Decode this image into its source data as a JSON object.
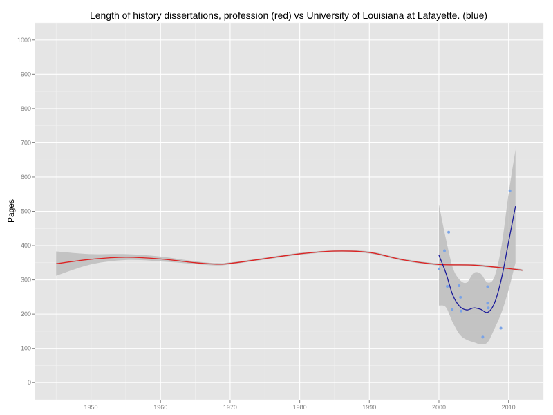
{
  "chart_data": {
    "type": "scatter",
    "title": "Length of history dissertations, profession (red) vs University of Louisiana at Lafayette. (blue)",
    "xlabel": "",
    "ylabel": "Pages",
    "xlim": [
      1942,
      2015
    ],
    "ylim": [
      -50,
      1050
    ],
    "x_ticks": [
      1950,
      1960,
      1970,
      1980,
      1990,
      2000,
      2010
    ],
    "y_ticks": [
      0,
      100,
      200,
      300,
      400,
      500,
      600,
      700,
      800,
      900,
      1000
    ],
    "grid": true,
    "background": "#e5e5e5",
    "series": [
      {
        "kind": "smooth",
        "color": "#dd2222",
        "ribbon_color": "#bdbdbd",
        "x": [
          1945,
          1950,
          1955,
          1960,
          1965,
          1968,
          1970,
          1975,
          1980,
          1985,
          1990,
          1995,
          2000,
          2005,
          2010,
          2012
        ],
        "y": [
          347,
          360,
          366,
          361,
          350,
          346,
          348,
          362,
          376,
          384,
          380,
          358,
          345,
          343,
          333,
          328
        ],
        "ribbon_upper": [
          383,
          375,
          375,
          368,
          354,
          349,
          351,
          365,
          379,
          386,
          383,
          361,
          348,
          346,
          336,
          331
        ],
        "ribbon_lower": [
          312,
          345,
          358,
          354,
          346,
          342,
          345,
          359,
          373,
          381,
          377,
          355,
          342,
          340,
          330,
          325
        ]
      },
      {
        "kind": "smooth_with_points",
        "color": "#1a1a9a",
        "point_color": "#7aa3e6",
        "ribbon_color": "#bdbdbd",
        "x": [
          2000,
          2001,
          2002,
          2003,
          2004,
          2005,
          2006,
          2007,
          2008,
          2009,
          2010,
          2011
        ],
        "y": [
          372,
          320,
          255,
          222,
          212,
          218,
          214,
          205,
          233,
          305,
          410,
          515
        ],
        "ribbon_upper": [
          520,
          420,
          335,
          300,
          292,
          320,
          318,
          292,
          310,
          400,
          550,
          680
        ],
        "ribbon_lower": [
          225,
          220,
          175,
          140,
          125,
          118,
          112,
          118,
          158,
          205,
          270,
          350
        ],
        "points": {
          "x": [
            2000,
            2000.8,
            2001.2,
            2001.4,
            2001.9,
            2002.9,
            2003.1,
            2003.2,
            2006.3,
            2007.0,
            2007.0,
            2007.1,
            2008.9,
            2010.2
          ],
          "y": [
            332,
            385,
            281,
            439,
            213,
            283,
            249,
            209,
            133,
            280,
            232,
            218,
            159,
            560
          ]
        }
      }
    ]
  }
}
